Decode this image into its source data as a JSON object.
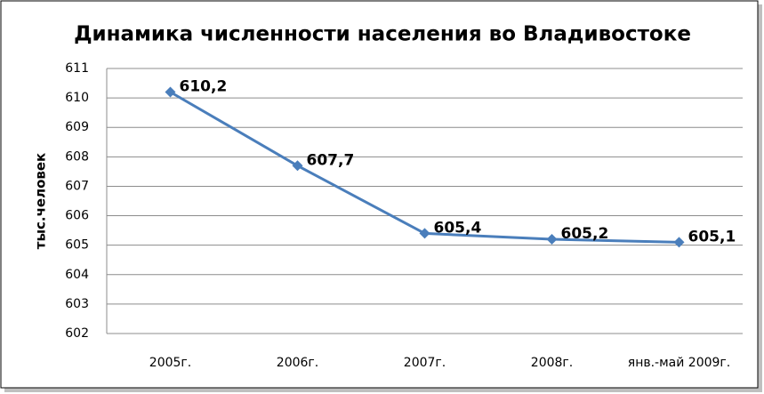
{
  "chart_data": {
    "type": "line",
    "title": "Динамика численности населения во Владивостоке",
    "y_label": "тыс.человек",
    "categories": [
      "2005г.",
      "2006г.",
      "2007г.",
      "2008г.",
      "янв.-май 2009г."
    ],
    "values": [
      610.2,
      607.7,
      605.4,
      605.2,
      605.1
    ],
    "value_labels": [
      "610,2",
      "607,7",
      "605,4",
      "605,2",
      "605,1"
    ],
    "color": "#4a7ebb",
    "ylim": [
      602,
      611
    ],
    "yticks": [
      602,
      603,
      604,
      605,
      606,
      607,
      608,
      609,
      610,
      611
    ],
    "grid": true
  }
}
